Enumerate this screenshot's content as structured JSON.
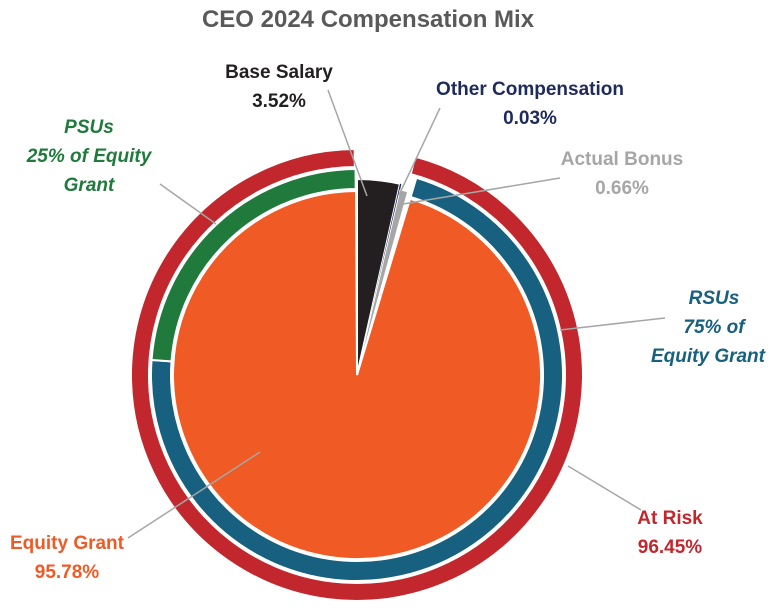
{
  "chart_data": {
    "type": "pie",
    "title": "CEO 2024 Compensation Mix",
    "slices": [
      {
        "name": "Base Salary",
        "value": 3.52,
        "value_label": "3.52%",
        "color": "#231f20"
      },
      {
        "name": "Other Compensation",
        "value": 0.03,
        "value_label": "0.03%",
        "color": "#1f2a5c"
      },
      {
        "name": "Actual Bonus",
        "value": 0.66,
        "value_label": "0.66%",
        "color": "#a6a6a6"
      },
      {
        "name": "Equity Grant",
        "value": 95.78,
        "value_label": "95.78%",
        "color": "#f05a24"
      }
    ],
    "equity_ring": [
      {
        "name": "RSUs",
        "line2": "75% of",
        "line3": "Equity Grant",
        "share_of_equity": 75,
        "color": "#17607f"
      },
      {
        "name": "PSUs",
        "line2": "25% of Equity",
        "line3": "Grant",
        "share_of_equity": 25,
        "color": "#1f7a3c"
      }
    ],
    "at_risk": {
      "name": "At Risk",
      "value": 96.45,
      "value_label": "96.45%",
      "color": "#c1272d"
    }
  }
}
